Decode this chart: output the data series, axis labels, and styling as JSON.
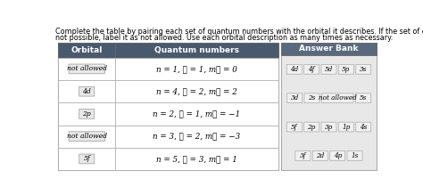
{
  "title_line1": "Complete the table by pairing each set of quantum numbers with the orbital it describes. If the set of quantum numbers is",
  "title_line2": "not possible, label it as not allowed. Use each orbital description as many times as necessary.",
  "table_header": [
    "Orbital",
    "Quantum numbers"
  ],
  "table_rows": [
    [
      "not allowed",
      "n = 1, ℓ = 1, mℓ = 0"
    ],
    [
      "4d",
      "n = 4, ℓ = 2, mℓ = 2"
    ],
    [
      "2p",
      "n = 2, ℓ = 1, mℓ = −1"
    ],
    [
      "not allowed",
      "n = 3, ℓ = 2, mℓ = −3"
    ],
    [
      "5f",
      "n = 5, ℓ = 3, mℓ = 1"
    ]
  ],
  "answer_bank_header": "Answer Bank",
  "answer_bank": [
    [
      "4d",
      "4f",
      "5d",
      "5p",
      "3s"
    ],
    [
      "3d",
      "2s",
      "not allowed",
      "5s"
    ],
    [
      "5f",
      "2p",
      "3p",
      "1p",
      "4s"
    ],
    [
      "3f",
      "2d",
      "4p",
      "1s"
    ]
  ],
  "header_bg": "#4a5a6e",
  "header_text_color": "#ffffff",
  "page_bg": "#ffffff",
  "answer_bank_bg": "#5a6a7e",
  "answer_bank_panel_bg": "#e8e8e8",
  "table_border": "#aaaaaa",
  "cell_box_bg": "#e8e8e8",
  "cell_box_border": "#999999"
}
